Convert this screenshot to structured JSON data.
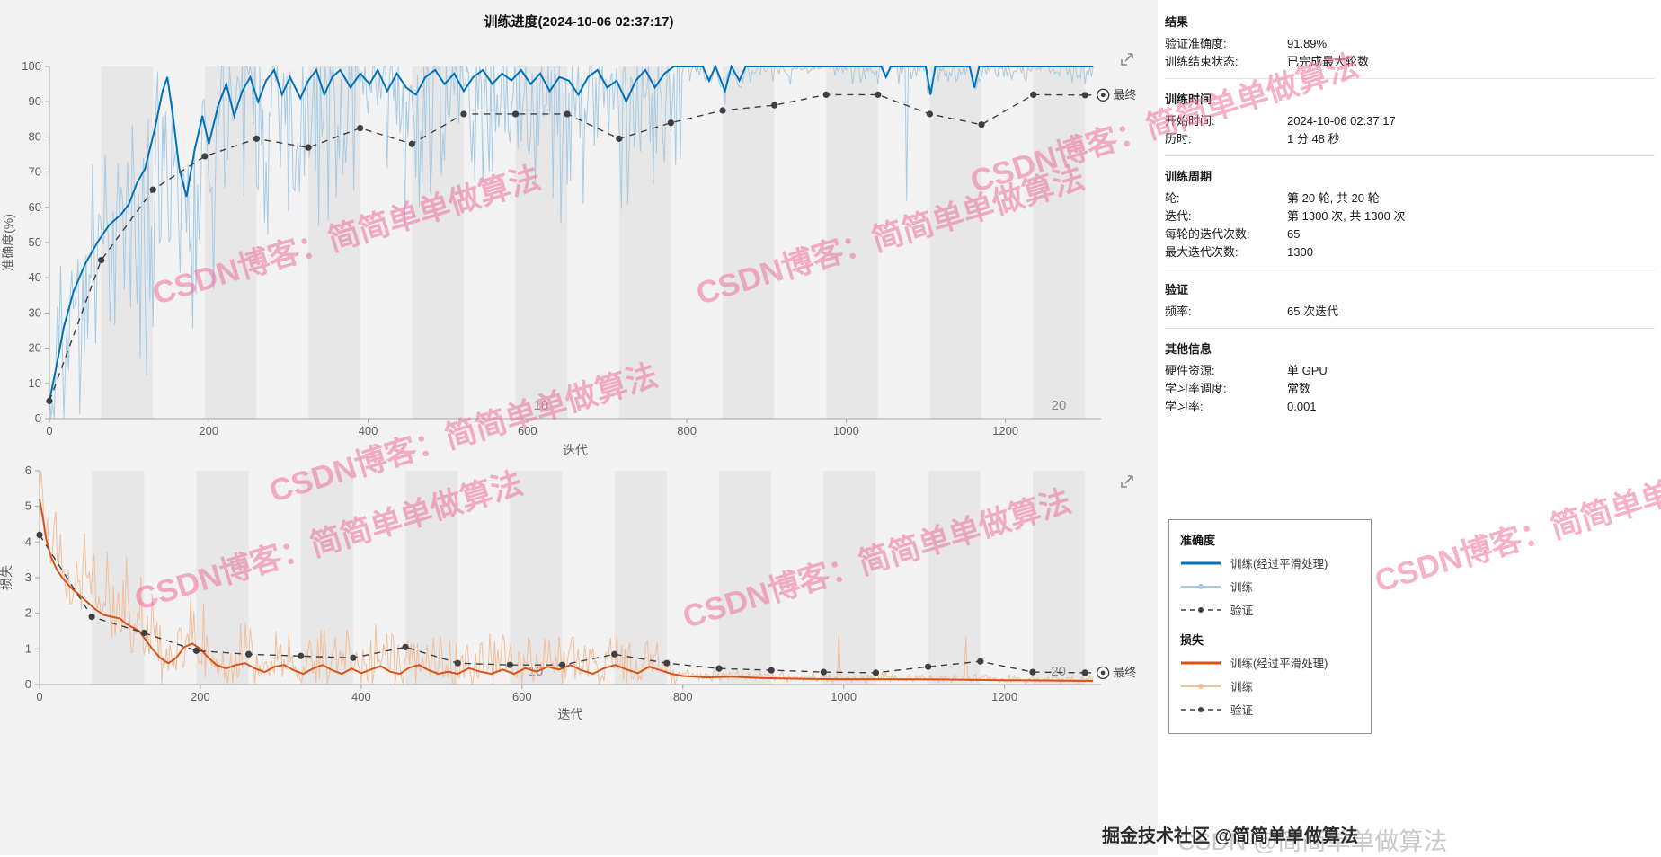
{
  "title": "训练进度(2024-10-06 02:37:17)",
  "watermark": {
    "text": "CSDN博客：简简单单做算法",
    "color": "#f0719f"
  },
  "footer": {
    "juejin": "掘金技术社区 @简简单单做算法",
    "csdn": "CSDN @简简单单做算法"
  },
  "colors": {
    "accent_blue": "#0072BD",
    "raw_blue": "#a8cbe4",
    "accent_orange": "#D95319",
    "raw_orange": "#f2bf9b",
    "validation": "#3f3f3f",
    "epoch_band": "#e7e7e7"
  },
  "panel": {
    "sections": [
      {
        "heading": "结果",
        "rows": [
          {
            "label": "验证准确度:",
            "value": "91.89%"
          },
          {
            "label": "训练结束状态:",
            "value": "已完成最大轮数"
          }
        ]
      },
      {
        "heading": "训练时间",
        "rows": [
          {
            "label": "开始时间:",
            "value": "2024-10-06 02:37:17"
          },
          {
            "label": "历时:",
            "value": "1 分 48 秒"
          }
        ]
      },
      {
        "heading": "训练周期",
        "rows": [
          {
            "label": "轮:",
            "value": "第 20 轮, 共 20 轮"
          },
          {
            "label": "迭代:",
            "value": "第 1300 次, 共 1300 次"
          },
          {
            "label": "每轮的迭代次数:",
            "value": "65"
          },
          {
            "label": "最大迭代次数:",
            "value": "1300"
          }
        ]
      },
      {
        "heading": "验证",
        "rows": [
          {
            "label": "频率:",
            "value": "65 次迭代"
          }
        ]
      },
      {
        "heading": "其他信息",
        "rows": [
          {
            "label": "硬件资源:",
            "value": "单 GPU"
          },
          {
            "label": "学习率调度:",
            "value": "常数"
          },
          {
            "label": "学习率:",
            "value": "0.001"
          }
        ]
      }
    ]
  },
  "legend": {
    "groups": [
      {
        "heading": "准确度",
        "entries": [
          {
            "label": "训练(经过平滑处理)",
            "sample": "acc_smooth"
          },
          {
            "label": "训练",
            "sample": "acc_raw"
          },
          {
            "label": "验证",
            "sample": "acc_val"
          }
        ]
      },
      {
        "heading": "损失",
        "entries": [
          {
            "label": "训练(经过平滑处理)",
            "sample": "loss_smooth"
          },
          {
            "label": "训练",
            "sample": "loss_raw"
          },
          {
            "label": "验证",
            "sample": "loss_val"
          }
        ]
      }
    ],
    "samples": {
      "acc_smooth": {
        "color": "#0072BD",
        "width": 3
      },
      "acc_raw": {
        "color": "#a8cbe4",
        "width": 2,
        "marker": true
      },
      "acc_val": {
        "color": "#3f3f3f",
        "width": 1.5,
        "dash": true,
        "marker": true
      },
      "loss_smooth": {
        "color": "#D95319",
        "width": 3
      },
      "loss_raw": {
        "color": "#f2bf9b",
        "width": 2,
        "marker": true
      },
      "loss_val": {
        "color": "#3f3f3f",
        "width": 1.5,
        "dash": true,
        "marker": true
      }
    }
  },
  "chart_data": [
    {
      "id": "accuracy",
      "type": "line",
      "title": "训练进度(2024-10-06 02:37:17)",
      "xlabel": "迭代",
      "ylabel": "准确度(%)",
      "xlim": [
        0,
        1320
      ],
      "ylim": [
        0,
        100
      ],
      "clamp": [
        0,
        100
      ],
      "data_end": 1310,
      "xticks": [
        0,
        200,
        400,
        600,
        800,
        1000,
        1200
      ],
      "yticks": [
        0,
        10,
        20,
        30,
        40,
        50,
        60,
        70,
        80,
        90,
        100
      ],
      "epoch_count": 20,
      "iterations_per_epoch": 65,
      "epoch_labels": [
        {
          "x": 617,
          "text": "10"
        },
        {
          "x": 1267,
          "text": "20"
        }
      ],
      "final": {
        "x": 1300,
        "y": 91.89,
        "label": "最终"
      },
      "series": [
        {
          "name": "训练(经过平滑处理)",
          "role": "smoothed",
          "color": "#0072BD",
          "points": [
            [
              0,
              5
            ],
            [
              8,
              14
            ],
            [
              18,
              26
            ],
            [
              30,
              36
            ],
            [
              45,
              44
            ],
            [
              60,
              50
            ],
            [
              75,
              55
            ],
            [
              90,
              58
            ],
            [
              100,
              61
            ],
            [
              110,
              67
            ],
            [
              120,
              71
            ],
            [
              132,
              82
            ],
            [
              142,
              93
            ],
            [
              148,
              97
            ],
            [
              155,
              86
            ],
            [
              163,
              71
            ],
            [
              172,
              63
            ],
            [
              182,
              76
            ],
            [
              192,
              86
            ],
            [
              200,
              78
            ],
            [
              212,
              89
            ],
            [
              222,
              95
            ],
            [
              232,
              86
            ],
            [
              242,
              93
            ],
            [
              252,
              97
            ],
            [
              262,
              90
            ],
            [
              272,
              96
            ],
            [
              282,
              99
            ],
            [
              292,
              92
            ],
            [
              302,
              97
            ],
            [
              315,
              91
            ],
            [
              325,
              96
            ],
            [
              335,
              99
            ],
            [
              345,
              92
            ],
            [
              355,
              97
            ],
            [
              365,
              99
            ],
            [
              378,
              94
            ],
            [
              390,
              98
            ],
            [
              402,
              95
            ],
            [
              412,
              99
            ],
            [
              424,
              93
            ],
            [
              436,
              98
            ],
            [
              448,
              94
            ],
            [
              460,
              92
            ],
            [
              472,
              97
            ],
            [
              484,
              99
            ],
            [
              496,
              95
            ],
            [
              508,
              98
            ],
            [
              520,
              93
            ],
            [
              532,
              97
            ],
            [
              544,
              99
            ],
            [
              556,
              95
            ],
            [
              568,
              98
            ],
            [
              580,
              96
            ],
            [
              592,
              99
            ],
            [
              604,
              95
            ],
            [
              616,
              98
            ],
            [
              628,
              93
            ],
            [
              640,
              97
            ],
            [
              652,
              96
            ],
            [
              664,
              92
            ],
            [
              676,
              97
            ],
            [
              688,
              99
            ],
            [
              700,
              94
            ],
            [
              712,
              96
            ],
            [
              724,
              90
            ],
            [
              736,
              96
            ],
            [
              748,
              99
            ],
            [
              760,
              94
            ],
            [
              772,
              98
            ],
            [
              784,
              100
            ],
            [
              820,
              100
            ],
            [
              828,
              96
            ],
            [
              836,
              100
            ],
            [
              848,
              93
            ],
            [
              856,
              100
            ],
            [
              866,
              96
            ],
            [
              874,
              100
            ],
            [
              920,
              100
            ],
            [
              1000,
              100
            ],
            [
              1044,
              100
            ],
            [
              1050,
              97
            ],
            [
              1056,
              100
            ],
            [
              1100,
              100
            ],
            [
              1106,
              92
            ],
            [
              1112,
              100
            ],
            [
              1155,
              100
            ],
            [
              1161,
              94
            ],
            [
              1167,
              100
            ],
            [
              1310,
              100
            ]
          ]
        },
        {
          "name": "训练",
          "role": "raw",
          "color": "#a8cbe4",
          "noise": {
            "seed": 7,
            "step": 2,
            "direction": -1,
            "jitter": 2.5,
            "spike_power": 2,
            "sparse_prob": 0.005,
            "sparse_amp": 40,
            "amplitude": [
              [
                0,
                60
              ],
              [
                120,
                55
              ],
              [
                300,
                45
              ],
              [
                600,
                42
              ],
              [
                790,
                40
              ],
              [
                796,
                4
              ],
              [
                1310,
                4
              ]
            ]
          }
        },
        {
          "name": "验证",
          "role": "validation",
          "color": "#3f3f3f",
          "x": [
            0,
            65,
            130,
            195,
            260,
            325,
            390,
            455,
            520,
            585,
            650,
            715,
            780,
            845,
            910,
            975,
            1040,
            1105,
            1170,
            1235,
            1300
          ],
          "y": [
            5,
            45,
            65,
            74.5,
            79.5,
            77,
            82.5,
            78,
            86.5,
            86.5,
            86.5,
            79.5,
            84,
            87.5,
            89,
            92,
            92,
            86.5,
            83.5,
            92,
            91.89
          ]
        }
      ]
    },
    {
      "id": "loss",
      "type": "line",
      "title": "",
      "xlabel": "迭代",
      "ylabel": "损失",
      "xlim": [
        0,
        1320
      ],
      "ylim": [
        0,
        6
      ],
      "clamp": [
        0.02,
        6
      ],
      "data_end": 1310,
      "xticks": [
        0,
        200,
        400,
        600,
        800,
        1000,
        1200
      ],
      "yticks": [
        0,
        1,
        2,
        3,
        4,
        5,
        6
      ],
      "epoch_count": 20,
      "iterations_per_epoch": 65,
      "epoch_labels": [
        {
          "x": 617,
          "text": "10"
        },
        {
          "x": 1267,
          "text": "20"
        }
      ],
      "final": {
        "x": 1300,
        "y": 0.33,
        "label": "最终"
      },
      "series": [
        {
          "name": "训练(经过平滑处理)",
          "role": "smoothed",
          "color": "#D95319",
          "points": [
            [
              0,
              5.2
            ],
            [
              4,
              4.7
            ],
            [
              8,
              4.1
            ],
            [
              14,
              3.6
            ],
            [
              22,
              3.2
            ],
            [
              30,
              2.95
            ],
            [
              40,
              2.7
            ],
            [
              50,
              2.5
            ],
            [
              60,
              2.3
            ],
            [
              70,
              2.1
            ],
            [
              80,
              1.95
            ],
            [
              90,
              1.9
            ],
            [
              100,
              1.85
            ],
            [
              108,
              1.7
            ],
            [
              116,
              1.6
            ],
            [
              124,
              1.5
            ],
            [
              132,
              1.25
            ],
            [
              140,
              1.0
            ],
            [
              150,
              0.75
            ],
            [
              160,
              0.6
            ],
            [
              170,
              0.75
            ],
            [
              180,
              1.05
            ],
            [
              190,
              1.15
            ],
            [
              200,
              1.0
            ],
            [
              210,
              0.75
            ],
            [
              220,
              0.55
            ],
            [
              232,
              0.45
            ],
            [
              244,
              0.55
            ],
            [
              256,
              0.6
            ],
            [
              268,
              0.45
            ],
            [
              280,
              0.35
            ],
            [
              292,
              0.5
            ],
            [
              304,
              0.55
            ],
            [
              316,
              0.4
            ],
            [
              328,
              0.3
            ],
            [
              340,
              0.45
            ],
            [
              352,
              0.55
            ],
            [
              364,
              0.4
            ],
            [
              376,
              0.3
            ],
            [
              388,
              0.45
            ],
            [
              400,
              0.32
            ],
            [
              412,
              0.42
            ],
            [
              424,
              0.52
            ],
            [
              436,
              0.36
            ],
            [
              448,
              0.3
            ],
            [
              460,
              0.48
            ],
            [
              472,
              0.55
            ],
            [
              484,
              0.4
            ],
            [
              496,
              0.3
            ],
            [
              508,
              0.36
            ],
            [
              520,
              0.3
            ],
            [
              534,
              0.46
            ],
            [
              548,
              0.36
            ],
            [
              562,
              0.3
            ],
            [
              576,
              0.42
            ],
            [
              590,
              0.3
            ],
            [
              604,
              0.46
            ],
            [
              618,
              0.36
            ],
            [
              632,
              0.5
            ],
            [
              646,
              0.42
            ],
            [
              660,
              0.55
            ],
            [
              674,
              0.4
            ],
            [
              688,
              0.3
            ],
            [
              702,
              0.46
            ],
            [
              716,
              0.55
            ],
            [
              730,
              0.42
            ],
            [
              744,
              0.32
            ],
            [
              758,
              0.5
            ],
            [
              772,
              0.4
            ],
            [
              786,
              0.3
            ],
            [
              800,
              0.24
            ],
            [
              830,
              0.2
            ],
            [
              860,
              0.22
            ],
            [
              900,
              0.18
            ],
            [
              950,
              0.16
            ],
            [
              1000,
              0.15
            ],
            [
              1060,
              0.15
            ],
            [
              1120,
              0.14
            ],
            [
              1200,
              0.12
            ],
            [
              1310,
              0.1
            ]
          ]
        },
        {
          "name": "训练",
          "role": "raw",
          "color": "#f2bf9b",
          "noise": {
            "seed": 11,
            "step": 2,
            "direction": 1,
            "jitter": 0.06,
            "spike_power": 2,
            "sparse_prob": 0.005,
            "sparse_amp": 1.3,
            "amplitude": [
              [
                0,
                2.2
              ],
              [
                150,
                1.8
              ],
              [
                300,
                1.4
              ],
              [
                600,
                1.1
              ],
              [
                790,
                0.9
              ],
              [
                796,
                0.2
              ],
              [
                1310,
                0.15
              ]
            ]
          }
        },
        {
          "name": "验证",
          "role": "validation",
          "color": "#3f3f3f",
          "x": [
            0,
            65,
            130,
            195,
            260,
            325,
            390,
            455,
            520,
            585,
            650,
            715,
            780,
            845,
            910,
            975,
            1040,
            1105,
            1170,
            1235,
            1300
          ],
          "y": [
            4.2,
            1.9,
            1.45,
            0.95,
            0.85,
            0.8,
            0.75,
            1.05,
            0.6,
            0.55,
            0.55,
            0.85,
            0.6,
            0.45,
            0.4,
            0.35,
            0.33,
            0.5,
            0.65,
            0.35,
            0.33
          ]
        }
      ]
    }
  ]
}
